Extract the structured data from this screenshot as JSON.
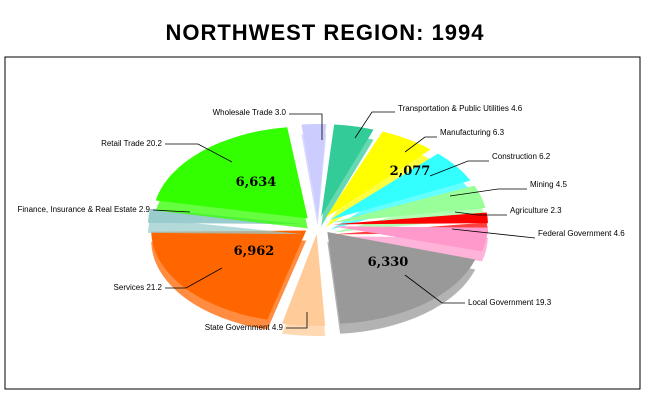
{
  "chart_data": {
    "type": "pie",
    "title": "NORTHWEST REGION:  1994",
    "slices": [
      {
        "label": "Transportation & Public Utilities 4.6",
        "value": 4.6,
        "color": "#33cc99"
      },
      {
        "label": "Manufacturing 6.3",
        "value": 6.3,
        "color": "#ffff00"
      },
      {
        "label": "Construction 6.2",
        "value": 6.2,
        "color": "#33ffff"
      },
      {
        "label": "Mining 4.5",
        "value": 4.5,
        "color": "#99ff99"
      },
      {
        "label": "Agriculture 2.3",
        "value": 2.3,
        "color": "#ff0000"
      },
      {
        "label": "Federal Government 4.6",
        "value": 4.6,
        "color": "#ff99cc"
      },
      {
        "label": "Local Government 19.3",
        "value": 19.3,
        "color": "#999999"
      },
      {
        "label": "State Government 4.9",
        "value": 4.9,
        "color": "#ffcc99"
      },
      {
        "label": "Services 21.2",
        "value": 21.2,
        "color": "#ff6600"
      },
      {
        "label": "Finance, Insurance & Real Estate 2.9",
        "value": 2.9,
        "color": "#99cccc"
      },
      {
        "label": "Retail Trade 20.2",
        "value": 20.2,
        "color": "#33ff00"
      },
      {
        "label": "Wholesale Trade 3.0",
        "value": 3.0,
        "color": "#ccccff"
      }
    ],
    "data_labels": [
      {
        "slice": "Manufacturing 6.3",
        "text": "2,077"
      },
      {
        "slice": "Local Government 19.3",
        "text": "6,330"
      },
      {
        "slice": "Services 21.2",
        "text": "6,962"
      },
      {
        "slice": "Retail Trade 20.2",
        "text": "6,634"
      }
    ]
  }
}
